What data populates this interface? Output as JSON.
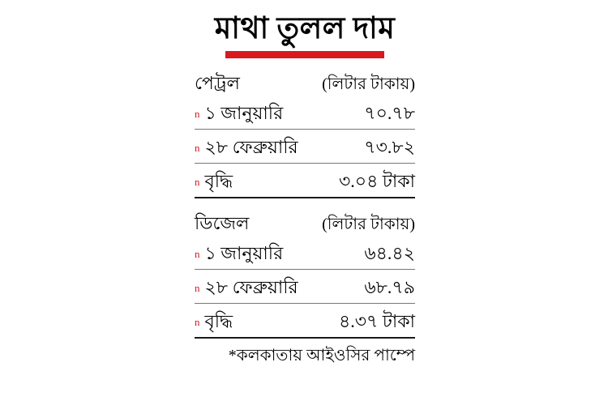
{
  "title": "মাথা তুলল দাম",
  "sections": [
    {
      "name": "পেট্রল",
      "unit": "(লিটার টাকায়)",
      "rows": [
        {
          "bullet": "n",
          "label": "১ জানুয়ারি",
          "value": "৭০.৭৮"
        },
        {
          "bullet": "n",
          "label": "২৮ ফেব্রুয়ারি",
          "value": "৭৩.৮২"
        },
        {
          "bullet": "n",
          "label": "বৃদ্ধি",
          "value": "৩.০৪ টাকা"
        }
      ]
    },
    {
      "name": "ডিজেল",
      "unit": "(লিটার টাকায়)",
      "rows": [
        {
          "bullet": "n",
          "label": "১ জানুয়ারি",
          "value": "৬৪.৪২"
        },
        {
          "bullet": "n",
          "label": "২৮ ফেব্রুয়ারি",
          "value": "৬৮.৭৯"
        },
        {
          "bullet": "n",
          "label": "বৃদ্ধি",
          "value": "৪.৩৭ টাকা"
        }
      ]
    }
  ],
  "footnote": "*কলকাতায় আইওসির পাম্পে",
  "colors": {
    "accent_red": "#d9181f",
    "rule_light": "#777777",
    "rule_dark": "#1a1a1a",
    "text": "#000000",
    "background": "#ffffff"
  },
  "chart_data": {
    "type": "table",
    "title": "মাথা তুলল দাম",
    "tables": [
      {
        "name": "পেট্রল",
        "unit": "(লিটার টাকায়)",
        "rows": [
          [
            "১ জানুয়ারি",
            "৭০.৭৮"
          ],
          [
            "২৮ ফেব্রুয়ারি",
            "৭৩.৮২"
          ],
          [
            "বৃদ্ধি",
            "৩.০৪ টাকা"
          ]
        ],
        "values_numeric": {
          "jan_1": 70.78,
          "feb_28": 73.82,
          "increase": 3.04
        }
      },
      {
        "name": "ডিজেল",
        "unit": "(লিটার টাকায়)",
        "rows": [
          [
            "১ জানুয়ারি",
            "৬৪.৪২"
          ],
          [
            "২৮ ফেব্রুয়ারি",
            "৬৮.৭৯"
          ],
          [
            "বৃদ্ধি",
            "৪.৩৭ টাকা"
          ]
        ],
        "values_numeric": {
          "jan_1": 64.42,
          "feb_28": 68.79,
          "increase": 4.37
        }
      }
    ],
    "footnote": "*কলকাতায় আইওসির পাম্পে"
  }
}
